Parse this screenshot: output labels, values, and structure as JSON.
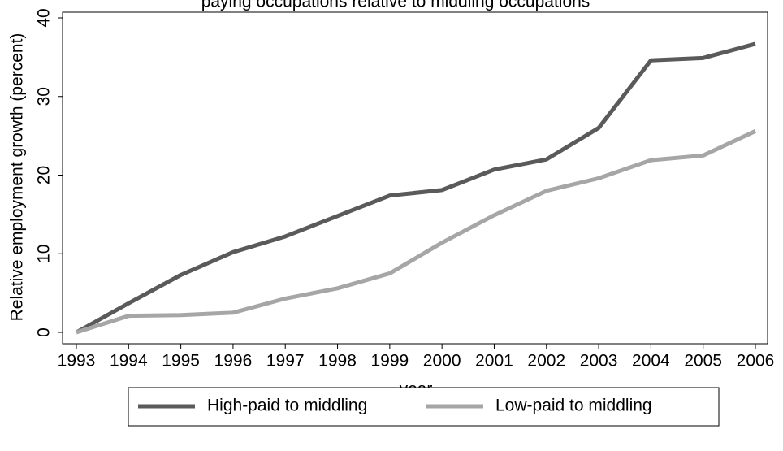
{
  "chart_data": {
    "type": "line",
    "title": "paying occupations relative to middling occupations",
    "x_label": "year",
    "y_label": "Relative employment growth (percent)",
    "x": [
      1993,
      1994,
      1995,
      1996,
      1997,
      1998,
      1999,
      2000,
      2001,
      2002,
      2003,
      2004,
      2005,
      2006
    ],
    "series": [
      {
        "name": "High-paid to middling",
        "color": "#5a5a5a",
        "values": [
          0,
          3.7,
          7.3,
          10.2,
          12.2,
          14.8,
          17.4,
          18.1,
          20.7,
          22.0,
          26.0,
          34.6,
          34.9,
          36.7
        ]
      },
      {
        "name": "Low-paid to middling",
        "color": "#a6a6a6",
        "values": [
          0,
          2.1,
          2.2,
          2.5,
          4.3,
          5.6,
          7.5,
          11.4,
          14.9,
          18.0,
          19.6,
          21.9,
          22.5,
          25.6
        ]
      }
    ],
    "xlim": [
      1993,
      2006
    ],
    "xticks": [
      1993,
      1994,
      1995,
      1996,
      1997,
      1998,
      1999,
      2000,
      2001,
      2002,
      2003,
      2004,
      2005,
      2006
    ],
    "ylim": [
      0,
      40
    ],
    "yticks": [
      0,
      10,
      20,
      30,
      40
    ],
    "grid": false,
    "legend": "bottom"
  }
}
